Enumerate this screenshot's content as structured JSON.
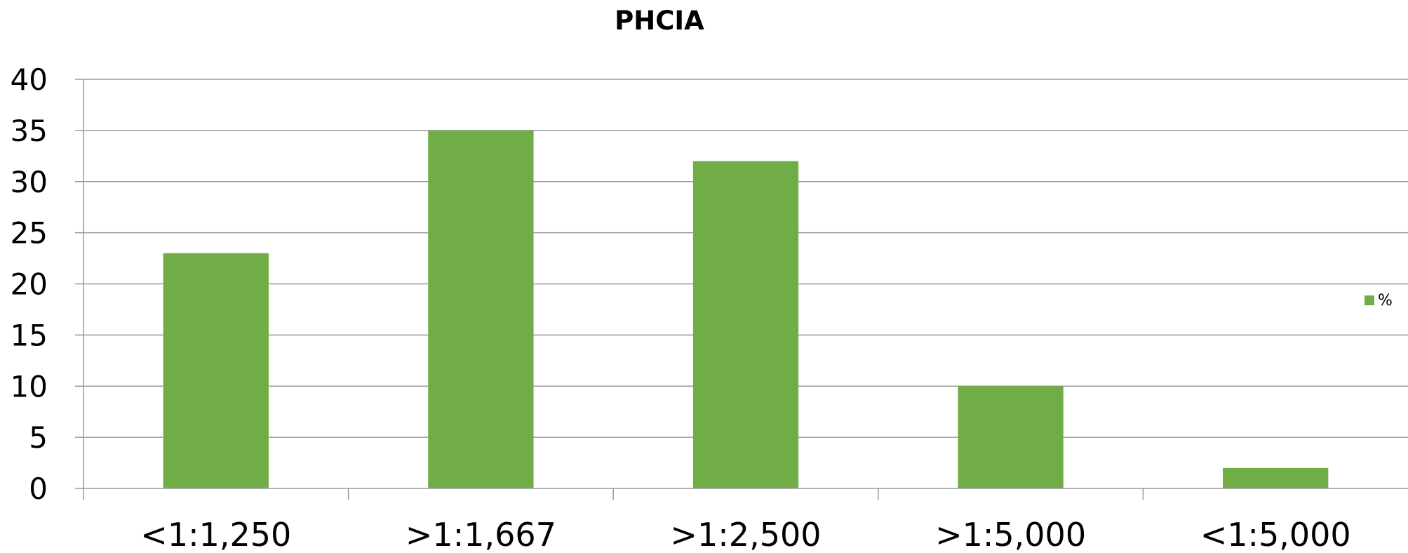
{
  "chart_data": {
    "type": "bar",
    "title": "PHCIA",
    "xlabel": "",
    "ylabel": "",
    "categories": [
      "<1:1,250",
      ">1:1,667",
      ">1:2,500",
      ">1:5,000",
      "<1:5,000"
    ],
    "series": [
      {
        "name": "%",
        "values": [
          23,
          35,
          32,
          10,
          2
        ],
        "color": "#70AD47"
      }
    ],
    "ylim": [
      0,
      40
    ],
    "yticks": [
      0,
      5,
      10,
      15,
      20,
      25,
      30,
      35,
      40
    ],
    "grid": true,
    "legend_position": "right"
  }
}
